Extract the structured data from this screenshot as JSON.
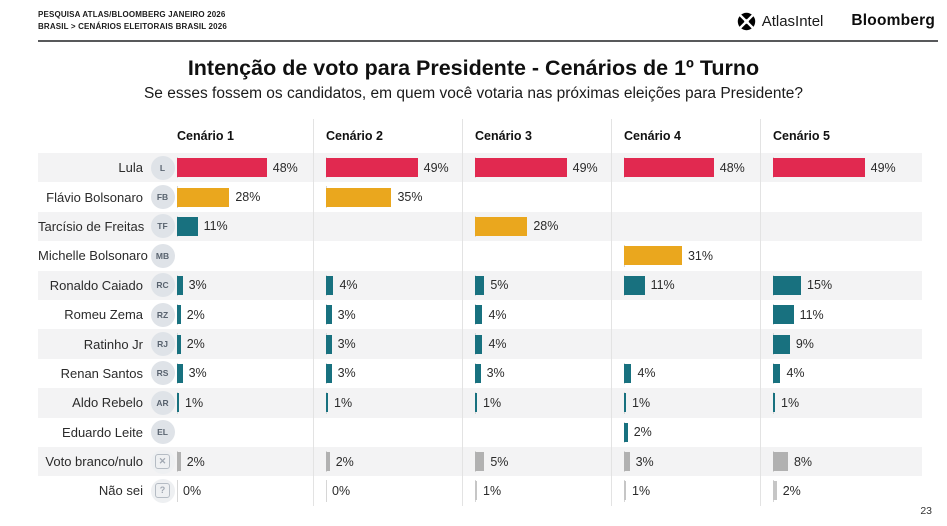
{
  "header": {
    "kicker_line1": "PESQUISA ATLAS/BLOOMBERG JANEIRO 2026",
    "kicker_line2": "BRASIL > CENÁRIOS ELEITORAIS BRASIL 2026",
    "logo_atlasintel": "AtlasIntel",
    "logo_bloomberg": "Bloomberg"
  },
  "title": "Intenção de voto para Presidente - Cenários de 1º Turno",
  "subtitle": "Se esses fossem os candidatos, em quem você votaria nas próximas eleições para Presidente?",
  "page_number": "23",
  "chart_data": {
    "type": "bar",
    "orientation": "horizontal",
    "unit": "%",
    "value_axis_max": 55,
    "grid": "off",
    "legend": "none",
    "palette": {
      "crimson": "#e12950",
      "gold": "#eaa71e",
      "teal": "#18717f",
      "gray": "#b1b1b1",
      "gray_light": "#c6c6c6"
    },
    "categories": [
      "Cenário 1",
      "Cenário 2",
      "Cenário 3",
      "Cenário 4",
      "Cenário 5"
    ],
    "rows": [
      {
        "label": "Lula",
        "initials": "L",
        "cells": [
          {
            "v": 48,
            "c": "crimson"
          },
          {
            "v": 49,
            "c": "crimson"
          },
          {
            "v": 49,
            "c": "crimson"
          },
          {
            "v": 48,
            "c": "crimson"
          },
          {
            "v": 49,
            "c": "crimson"
          }
        ]
      },
      {
        "label": "Flávio Bolsonaro",
        "initials": "FB",
        "cells": [
          {
            "v": 28,
            "c": "gold"
          },
          {
            "v": 35,
            "c": "gold"
          },
          null,
          null,
          null
        ]
      },
      {
        "label": "Tarcísio de Freitas",
        "initials": "TF",
        "cells": [
          {
            "v": 11,
            "c": "teal"
          },
          null,
          {
            "v": 28,
            "c": "gold"
          },
          null,
          null
        ]
      },
      {
        "label": "Michelle Bolsonaro",
        "initials": "MB",
        "cells": [
          null,
          null,
          null,
          {
            "v": 31,
            "c": "gold"
          },
          null
        ]
      },
      {
        "label": "Ronaldo Caiado",
        "initials": "RC",
        "cells": [
          {
            "v": 3,
            "c": "teal"
          },
          {
            "v": 4,
            "c": "teal"
          },
          {
            "v": 5,
            "c": "teal"
          },
          {
            "v": 11,
            "c": "teal"
          },
          {
            "v": 15,
            "c": "teal"
          }
        ]
      },
      {
        "label": "Romeu Zema",
        "initials": "RZ",
        "cells": [
          {
            "v": 2,
            "c": "teal"
          },
          {
            "v": 3,
            "c": "teal"
          },
          {
            "v": 4,
            "c": "teal"
          },
          null,
          {
            "v": 11,
            "c": "teal"
          }
        ]
      },
      {
        "label": "Ratinho Jr",
        "initials": "RJ",
        "cells": [
          {
            "v": 2,
            "c": "teal"
          },
          {
            "v": 3,
            "c": "teal"
          },
          {
            "v": 4,
            "c": "teal"
          },
          null,
          {
            "v": 9,
            "c": "teal"
          }
        ]
      },
      {
        "label": "Renan Santos",
        "initials": "RS",
        "cells": [
          {
            "v": 3,
            "c": "teal"
          },
          {
            "v": 3,
            "c": "teal"
          },
          {
            "v": 3,
            "c": "teal"
          },
          {
            "v": 4,
            "c": "teal"
          },
          {
            "v": 4,
            "c": "teal"
          }
        ]
      },
      {
        "label": "Aldo Rebelo",
        "initials": "AR",
        "cells": [
          {
            "v": 1,
            "c": "teal"
          },
          {
            "v": 1,
            "c": "teal"
          },
          {
            "v": 1,
            "c": "teal"
          },
          {
            "v": 1,
            "c": "teal"
          },
          {
            "v": 1,
            "c": "teal"
          }
        ]
      },
      {
        "label": "Eduardo Leite",
        "initials": "EL",
        "cells": [
          null,
          null,
          null,
          {
            "v": 2,
            "c": "teal"
          },
          null
        ]
      },
      {
        "label": "Voto branco/nulo",
        "icon": "x",
        "cells": [
          {
            "v": 2,
            "c": "gray"
          },
          {
            "v": 2,
            "c": "gray"
          },
          {
            "v": 5,
            "c": "gray"
          },
          {
            "v": 3,
            "c": "gray"
          },
          {
            "v": 8,
            "c": "gray"
          }
        ]
      },
      {
        "label": "Não sei",
        "icon": "?",
        "cells": [
          {
            "v": 0,
            "c": "gray_light"
          },
          {
            "v": 0,
            "c": "gray_light"
          },
          {
            "v": 1,
            "c": "gray_light"
          },
          {
            "v": 1,
            "c": "gray_light"
          },
          {
            "v": 2,
            "c": "gray_light"
          }
        ]
      }
    ]
  }
}
